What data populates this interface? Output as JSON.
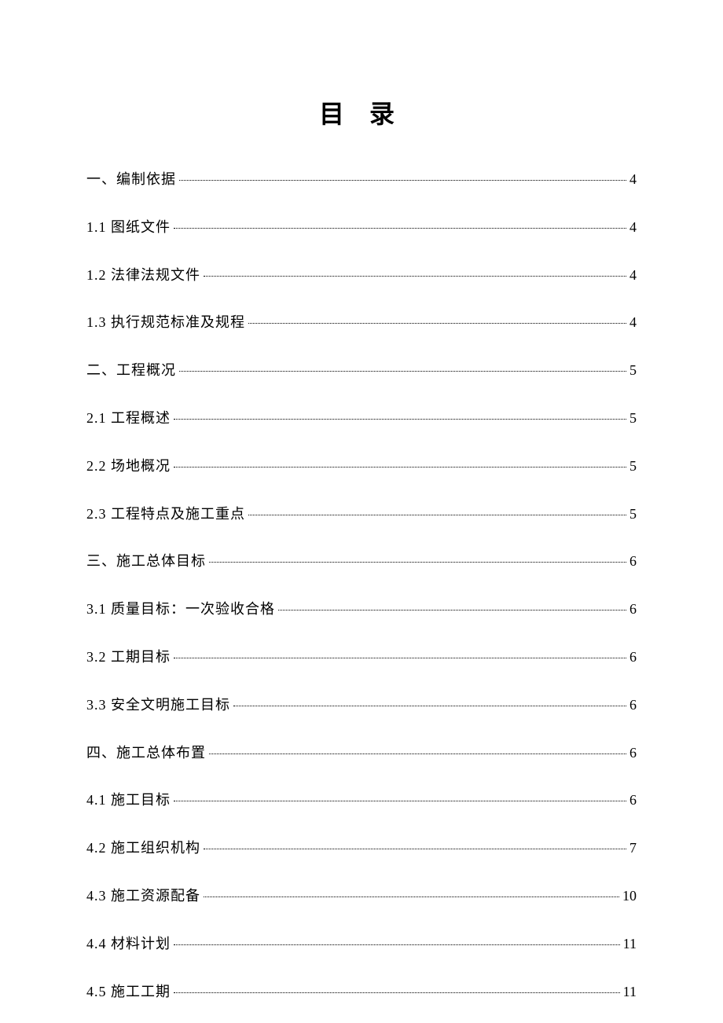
{
  "title": "目 录",
  "text_color": "#000000",
  "background_color": "#ffffff",
  "title_fontsize": 32,
  "entry_fontsize": 18,
  "leader_style": "dotted",
  "entries": [
    {
      "label": "一、编制依据",
      "page": "4"
    },
    {
      "label": "1.1 图纸文件",
      "page": "4"
    },
    {
      "label": "1.2 法律法规文件",
      "page": "4"
    },
    {
      "label": "1.3 执行规范标准及规程",
      "page": "4"
    },
    {
      "label": "二、工程概况",
      "page": "5"
    },
    {
      "label": "2.1 工程概述",
      "page": "5"
    },
    {
      "label": "2.2 场地概况",
      "page": "5"
    },
    {
      "label": "2.3 工程特点及施工重点",
      "page": "5"
    },
    {
      "label": "三、施工总体目标",
      "page": "6"
    },
    {
      "label": "3.1 质量目标：一次验收合格",
      "page": "6"
    },
    {
      "label": "3.2 工期目标",
      "page": "6"
    },
    {
      "label": "3.3 安全文明施工目标",
      "page": "6"
    },
    {
      "label": "四、施工总体布置",
      "page": "6"
    },
    {
      "label": "4.1 施工目标",
      "page": "6"
    },
    {
      "label": "4.2 施工组织机构",
      "page": "7"
    },
    {
      "label": "4.3 施工资源配备",
      "page": "10"
    },
    {
      "label": "4.4 材料计划",
      "page": "11"
    },
    {
      "label": "4.5 施工工期",
      "page": "11"
    }
  ]
}
